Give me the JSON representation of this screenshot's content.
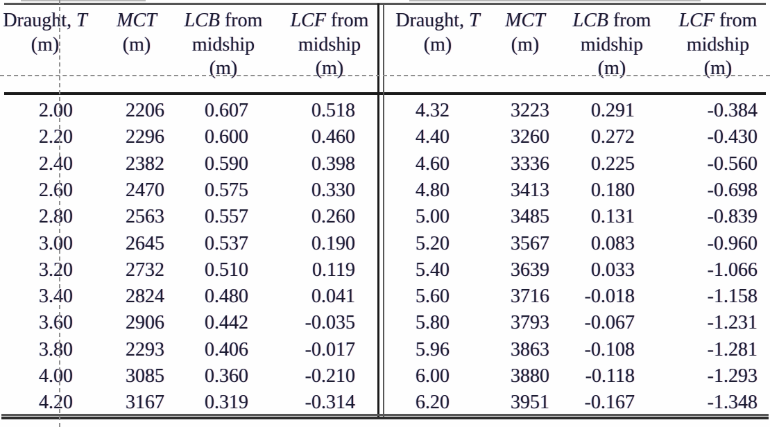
{
  "document": {
    "description": "Scanned hydrostatic table, two side-by-side halves with identical column headers",
    "text_color": "#1b1b30",
    "guide_color": "#8f8f8f"
  },
  "columns": [
    {
      "title_roman": "Draught, ",
      "title_italic": "T",
      "title_after": "",
      "unit_line2": "(m)",
      "unit_line3": ""
    },
    {
      "title_roman": "",
      "title_italic": "MCT",
      "title_after": "",
      "unit_line2": "(m)",
      "unit_line3": ""
    },
    {
      "title_roman": "",
      "title_italic": "LCB",
      "title_after": " from",
      "unit_line2": "midship",
      "unit_line3": "(m)"
    },
    {
      "title_roman": "",
      "title_italic": "LCF",
      "title_after": " from",
      "unit_line2": "midship",
      "unit_line3": "(m)"
    }
  ],
  "tables": [
    {
      "side": "left",
      "rows": [
        [
          "2.00",
          "2206",
          "0.607",
          "0.518"
        ],
        [
          "2.20",
          "2296",
          "0.600",
          "0.460"
        ],
        [
          "2.40",
          "2382",
          "0.590",
          "0.398"
        ],
        [
          "2.60",
          "2470",
          "0.575",
          "0.330"
        ],
        [
          "2.80",
          "2563",
          "0.557",
          "0.260"
        ],
        [
          "3.00",
          "2645",
          "0.537",
          "0.190"
        ],
        [
          "3.20",
          "2732",
          "0.510",
          "0.119"
        ],
        [
          "3.40",
          "2824",
          "0.480",
          "0.041"
        ],
        [
          "3.60",
          "2906",
          "0.442",
          "-0.035"
        ],
        [
          "3.80",
          "2293",
          "0.406",
          "-0.017"
        ],
        [
          "4.00",
          "3085",
          "0.360",
          "-0.210"
        ],
        [
          "4.20",
          "3167",
          "0.319",
          "-0.314"
        ]
      ]
    },
    {
      "side": "right",
      "rows": [
        [
          "4.32",
          "3223",
          "0.291",
          "-0.384"
        ],
        [
          "4.40",
          "3260",
          "0.272",
          "-0.430"
        ],
        [
          "4.60",
          "3336",
          "0.225",
          "-0.560"
        ],
        [
          "4.80",
          "3413",
          "0.180",
          "-0.698"
        ],
        [
          "5.00",
          "3485",
          "0.131",
          "-0.839"
        ],
        [
          "5.20",
          "3567",
          "0.083",
          "-0.960"
        ],
        [
          "5.40",
          "3639",
          "0.033",
          "-1.066"
        ],
        [
          "5.60",
          "3716",
          "-0.018",
          "-1.158"
        ],
        [
          "5.80",
          "3793",
          "-0.067",
          "-1.231"
        ],
        [
          "5.96",
          "3863",
          "-0.108",
          "-1.281"
        ],
        [
          "6.00",
          "3880",
          "-0.118",
          "-1.293"
        ],
        [
          "6.20",
          "3951",
          "-0.167",
          "-1.348"
        ]
      ]
    }
  ]
}
